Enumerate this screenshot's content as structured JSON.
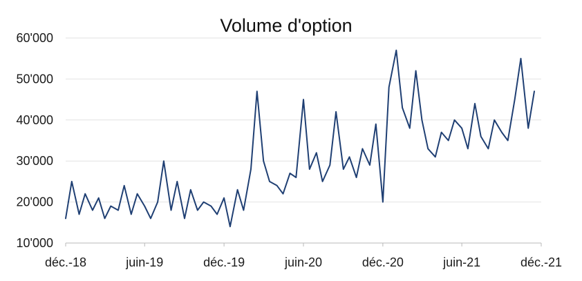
{
  "chart_data": {
    "type": "line",
    "title": "Volume d'option",
    "xlabel": "",
    "ylabel": "",
    "x_range": [
      "2018-12-01",
      "2021-12-01"
    ],
    "ylim": [
      10000,
      60000
    ],
    "y_ticks": [
      10000,
      20000,
      30000,
      40000,
      50000,
      60000
    ],
    "y_tick_labels": [
      "10'000",
      "20'000",
      "30'000",
      "40'000",
      "50'000",
      "60'000"
    ],
    "x_ticks": [
      "2018-12-01",
      "2019-06-01",
      "2019-12-01",
      "2020-06-01",
      "2020-12-01",
      "2021-06-01",
      "2021-12-01"
    ],
    "x_tick_labels": [
      "déc.-18",
      "juin-19",
      "déc.-19",
      "juin-20",
      "déc.-20",
      "juin-21",
      "déc.-21"
    ],
    "grid": "horizontal",
    "line_color": "#1f3f73",
    "series": [
      {
        "x": [
          "2018-12-01",
          "2018-12-15",
          "2019-01-01",
          "2019-01-15",
          "2019-02-01",
          "2019-02-15",
          "2019-03-01",
          "2019-03-15",
          "2019-04-01",
          "2019-04-15",
          "2019-05-01",
          "2019-05-15",
          "2019-06-01",
          "2019-06-15",
          "2019-07-01",
          "2019-07-15",
          "2019-08-01",
          "2019-08-15",
          "2019-09-01",
          "2019-09-15",
          "2019-10-01",
          "2019-10-15",
          "2019-11-01",
          "2019-11-15",
          "2019-12-01",
          "2019-12-15",
          "2020-01-01",
          "2020-01-15",
          "2020-02-01",
          "2020-02-15",
          "2020-03-01",
          "2020-03-15",
          "2020-04-01",
          "2020-04-15",
          "2020-05-01",
          "2020-05-15",
          "2020-06-01",
          "2020-06-15",
          "2020-07-01",
          "2020-07-15",
          "2020-08-01",
          "2020-08-15",
          "2020-09-01",
          "2020-09-15",
          "2020-10-01",
          "2020-10-15",
          "2020-11-01",
          "2020-11-15",
          "2020-12-01",
          "2020-12-15",
          "2021-01-01",
          "2021-01-15",
          "2021-02-01",
          "2021-02-15",
          "2021-03-01",
          "2021-03-15",
          "2021-04-01",
          "2021-04-15",
          "2021-05-01",
          "2021-05-15",
          "2021-06-01",
          "2021-06-15",
          "2021-07-01",
          "2021-07-15",
          "2021-08-01",
          "2021-08-15",
          "2021-09-01",
          "2021-09-15",
          "2021-10-01",
          "2021-10-15",
          "2021-11-01",
          "2021-11-15"
        ],
        "values": [
          16000,
          25000,
          17000,
          22000,
          18000,
          21000,
          16000,
          19000,
          18000,
          24000,
          17000,
          22000,
          19000,
          16000,
          20000,
          30000,
          18000,
          25000,
          16000,
          23000,
          18000,
          20000,
          19000,
          17000,
          21000,
          14000,
          23000,
          18000,
          28000,
          47000,
          30000,
          25000,
          24000,
          22000,
          27000,
          26000,
          45000,
          28000,
          32000,
          25000,
          29000,
          42000,
          28000,
          31000,
          26000,
          33000,
          29000,
          39000,
          20000,
          48000,
          57000,
          43000,
          38000,
          52000,
          40000,
          33000,
          31000,
          37000,
          35000,
          40000,
          38000,
          33000,
          44000,
          36000,
          33000,
          40000,
          37000,
          35000,
          45000,
          55000,
          38000,
          47000
        ]
      }
    ]
  }
}
